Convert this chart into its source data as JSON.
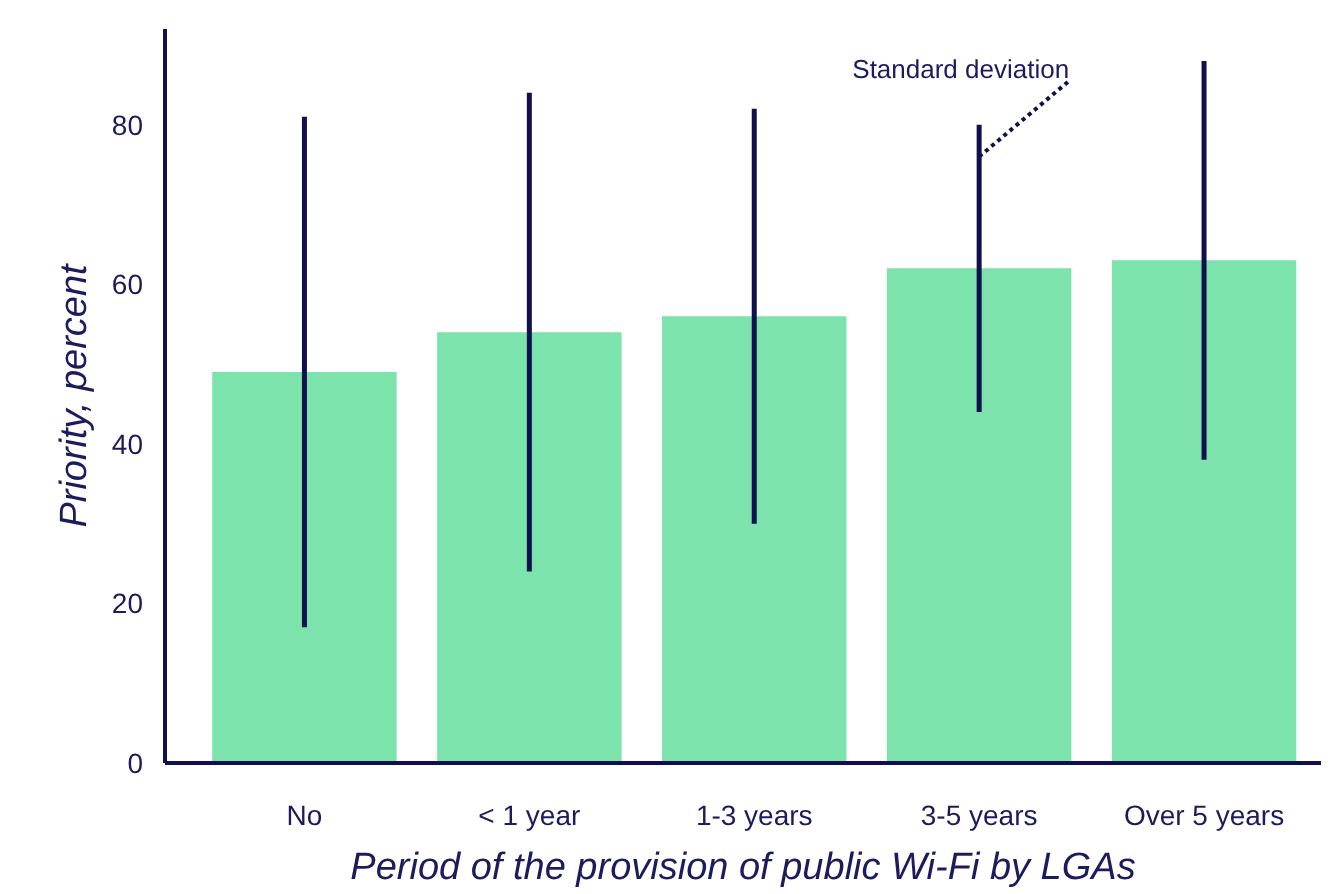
{
  "chart_data": {
    "type": "bar",
    "xlabel": "Period of the provision of public Wi-Fi by LGAs",
    "ylabel": "Priority, percent",
    "categories": [
      "No",
      "< 1 year",
      "1-3 years",
      "3-5 years",
      "Over 5 years"
    ],
    "values": [
      49,
      54,
      56,
      62,
      63
    ],
    "errors": [
      32,
      30,
      26,
      18,
      25
    ],
    "color": "#7be3ab",
    "ylim": [
      0,
      92
    ],
    "yticks": [
      0,
      20,
      40,
      60,
      80
    ],
    "grid": false,
    "annotations": [
      {
        "text": "Standard deviation",
        "x": "3-5 years",
        "y": 79
      }
    ]
  }
}
